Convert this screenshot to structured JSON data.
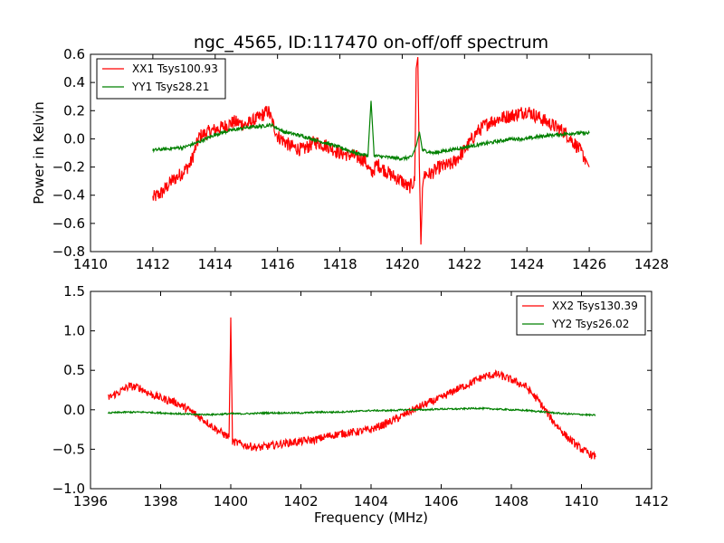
{
  "title": "ngc_4565, ID:117470 on-off/off spectrum",
  "chart_data": [
    {
      "type": "line",
      "title": "ngc_4565, ID:117470 on-off/off spectrum",
      "xlabel": "",
      "ylabel": "Power in Kelvin",
      "xlim": [
        1410,
        1428
      ],
      "ylim": [
        -0.8,
        0.6
      ],
      "xticks": [
        1410,
        1412,
        1414,
        1416,
        1418,
        1420,
        1422,
        1424,
        1426,
        1428
      ],
      "yticks": [
        -0.8,
        -0.6,
        -0.4,
        -0.2,
        0.0,
        0.2,
        0.4,
        0.6
      ],
      "xtick_labels": [
        "1410",
        "1412",
        "1414",
        "1416",
        "1418",
        "1420",
        "1422",
        "1424",
        "1426",
        "1428"
      ],
      "ytick_labels": [
        "−0.8",
        "−0.6",
        "−0.4",
        "−0.2",
        "0.0",
        "0.2",
        "0.4",
        "0.6"
      ],
      "grid": false,
      "legend_position": "upper-left",
      "series": [
        {
          "name": "XX1 Tsys100.93",
          "color": "#ff0000",
          "x": [
            1412.0,
            1412.3,
            1412.6,
            1412.9,
            1413.2,
            1413.5,
            1413.8,
            1414.2,
            1414.6,
            1415.0,
            1415.4,
            1415.7,
            1416.0,
            1416.4,
            1416.8,
            1417.2,
            1417.6,
            1418.0,
            1418.4,
            1418.8,
            1419.0,
            1419.2,
            1419.6,
            1420.0,
            1420.2,
            1420.4,
            1420.45,
            1420.5,
            1420.55,
            1420.6,
            1420.65,
            1420.7,
            1420.9,
            1421.2,
            1421.6,
            1422.0,
            1422.4,
            1422.8,
            1423.2,
            1423.6,
            1424.0,
            1424.4,
            1424.8,
            1425.2,
            1425.6,
            1425.9,
            1426.0
          ],
          "y": [
            -0.42,
            -0.38,
            -0.3,
            -0.25,
            -0.18,
            0.02,
            0.05,
            0.08,
            0.12,
            0.1,
            0.15,
            0.2,
            0.02,
            -0.05,
            -0.08,
            -0.02,
            -0.05,
            -0.1,
            -0.12,
            -0.15,
            -0.25,
            -0.18,
            -0.25,
            -0.3,
            -0.35,
            -0.3,
            0.5,
            0.58,
            -0.2,
            -0.75,
            -0.35,
            -0.25,
            -0.25,
            -0.2,
            -0.18,
            -0.08,
            0.05,
            0.12,
            0.15,
            0.17,
            0.2,
            0.15,
            0.1,
            0.05,
            -0.05,
            -0.15,
            -0.2
          ],
          "noise": 0.05
        },
        {
          "name": "YY1 Tsys28.21",
          "color": "#008000",
          "x": [
            1412.0,
            1412.5,
            1413.0,
            1413.5,
            1414.0,
            1414.5,
            1415.0,
            1415.5,
            1415.8,
            1416.2,
            1416.8,
            1417.4,
            1418.0,
            1418.5,
            1418.9,
            1419.0,
            1419.1,
            1419.5,
            1420.0,
            1420.3,
            1420.45,
            1420.55,
            1420.65,
            1421.0,
            1421.5,
            1422.0,
            1422.5,
            1423.0,
            1423.5,
            1424.0,
            1424.5,
            1425.0,
            1425.5,
            1426.0
          ],
          "y": [
            -0.08,
            -0.07,
            -0.06,
            -0.02,
            0.03,
            0.06,
            0.08,
            0.09,
            0.1,
            0.05,
            0.02,
            -0.02,
            -0.06,
            -0.1,
            -0.12,
            0.27,
            -0.12,
            -0.13,
            -0.14,
            -0.13,
            -0.05,
            0.05,
            -0.08,
            -0.1,
            -0.08,
            -0.06,
            -0.04,
            -0.02,
            0.0,
            0.0,
            0.02,
            0.03,
            0.04,
            0.04
          ],
          "noise": 0.012
        }
      ]
    },
    {
      "type": "line",
      "title": "",
      "xlabel": "Frequency (MHz)",
      "ylabel": "",
      "xlim": [
        1396,
        1412
      ],
      "ylim": [
        -1.0,
        1.5
      ],
      "xticks": [
        1396,
        1398,
        1400,
        1402,
        1404,
        1406,
        1408,
        1410,
        1412
      ],
      "yticks": [
        -1.0,
        -0.5,
        0.0,
        0.5,
        1.0,
        1.5
      ],
      "xtick_labels": [
        "1396",
        "1398",
        "1400",
        "1402",
        "1404",
        "1406",
        "1408",
        "1410",
        "1412"
      ],
      "ytick_labels": [
        "−1.0",
        "−0.5",
        "0.0",
        "0.5",
        "1.0",
        "1.5"
      ],
      "grid": false,
      "legend_position": "upper-right",
      "series": [
        {
          "name": "XX2 Tsys130.39",
          "color": "#ff0000",
          "x": [
            1396.5,
            1396.8,
            1397.1,
            1397.4,
            1397.7,
            1398.0,
            1398.4,
            1398.8,
            1399.2,
            1399.6,
            1399.95,
            1400.0,
            1400.05,
            1400.4,
            1400.8,
            1401.2,
            1401.6,
            1402.0,
            1402.4,
            1402.8,
            1403.2,
            1403.6,
            1404.0,
            1404.4,
            1404.8,
            1405.2,
            1405.6,
            1406.0,
            1406.4,
            1406.8,
            1407.2,
            1407.6,
            1408.0,
            1408.4,
            1408.8,
            1409.2,
            1409.6,
            1410.0,
            1410.4
          ],
          "y": [
            0.15,
            0.22,
            0.3,
            0.28,
            0.2,
            0.15,
            0.1,
            0.0,
            -0.12,
            -0.25,
            -0.35,
            1.17,
            -0.4,
            -0.45,
            -0.48,
            -0.45,
            -0.42,
            -0.4,
            -0.38,
            -0.33,
            -0.3,
            -0.28,
            -0.25,
            -0.18,
            -0.1,
            0.0,
            0.08,
            0.15,
            0.25,
            0.33,
            0.42,
            0.45,
            0.38,
            0.3,
            0.1,
            -0.15,
            -0.35,
            -0.5,
            -0.6
          ],
          "noise": 0.05
        },
        {
          "name": "YY2 Tsys26.02",
          "color": "#008000",
          "x": [
            1396.5,
            1397.0,
            1397.5,
            1398.0,
            1398.5,
            1399.0,
            1399.5,
            1400.0,
            1400.5,
            1401.0,
            1401.5,
            1402.0,
            1402.5,
            1403.0,
            1403.5,
            1404.0,
            1404.5,
            1405.0,
            1405.5,
            1406.0,
            1406.5,
            1407.0,
            1407.5,
            1408.0,
            1408.5,
            1409.0,
            1409.5,
            1410.0,
            1410.4
          ],
          "y": [
            -0.04,
            -0.03,
            -0.03,
            -0.04,
            -0.05,
            -0.06,
            -0.06,
            -0.05,
            -0.05,
            -0.04,
            -0.04,
            -0.04,
            -0.03,
            -0.03,
            -0.02,
            -0.01,
            -0.01,
            0.0,
            0.0,
            0.01,
            0.01,
            0.02,
            0.01,
            0.0,
            -0.01,
            -0.03,
            -0.05,
            -0.06,
            -0.07
          ],
          "noise": 0.01
        }
      ]
    }
  ]
}
